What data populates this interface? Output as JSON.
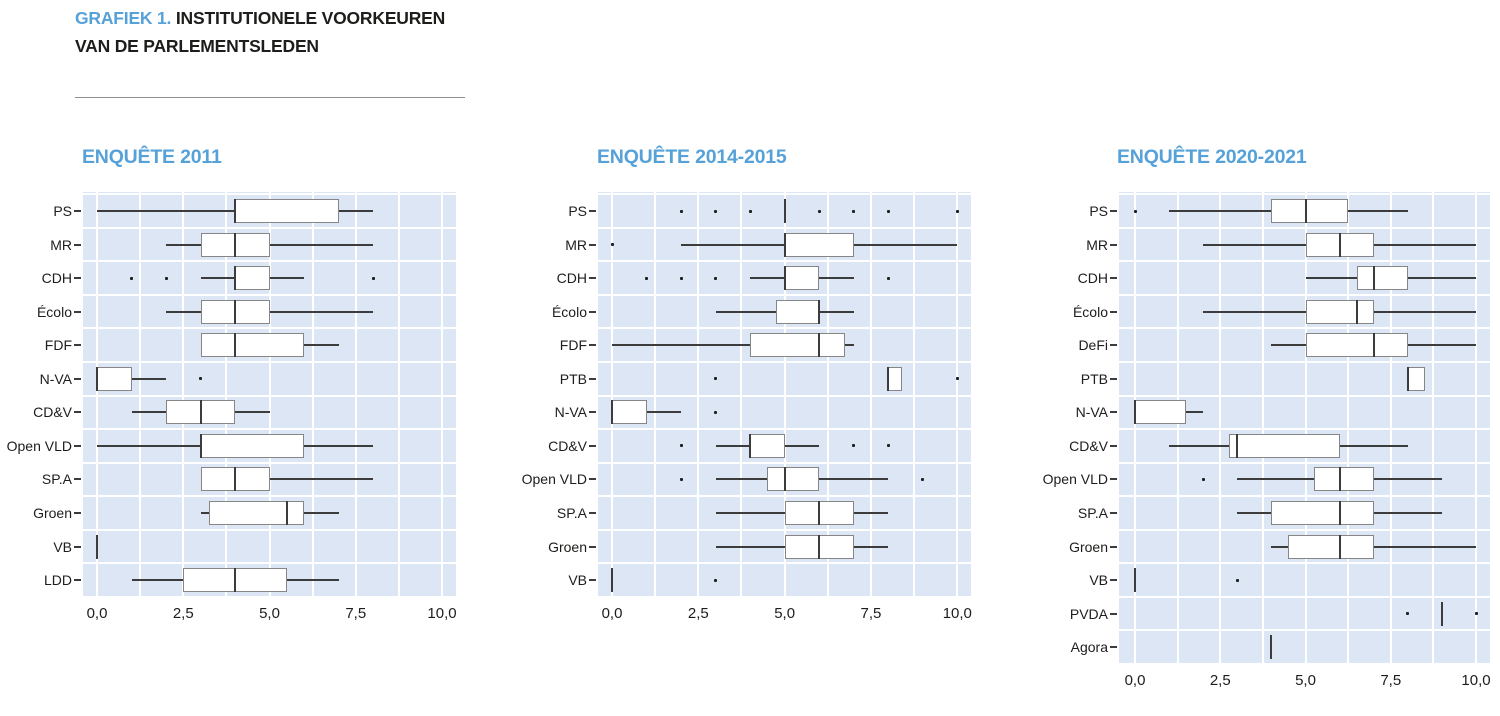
{
  "header": {
    "prefix": "GRAFIEK 1.",
    "line1": "INSTITUTIONELE VOORKEUREN",
    "line2": "VAN DE PARLEMENTSLEDEN"
  },
  "colors": {
    "accent_blue": "#56a1d8",
    "plot_background": "#dce6f4",
    "gridline": "#ffffff",
    "box_fill": "#ffffff",
    "box_border": "#868686",
    "whisker": "#3c3c3c",
    "text": "#1d1d1b"
  },
  "chart_data": [
    {
      "type": "boxplot",
      "orientation": "horizontal",
      "title": "ENQUÊTE 2011",
      "xlim": [
        0,
        10
      ],
      "xtick_values": [
        0,
        2.5,
        5,
        7.5,
        10
      ],
      "xtick_labels": [
        "0,0",
        "2,5",
        "5,0",
        "7,5",
        "10,0"
      ],
      "grid_step": 1.25,
      "rows": [
        {
          "label": "PS",
          "lo": 0,
          "q1": 4,
          "med": 4,
          "q3": 7,
          "hi": 8,
          "outliers": []
        },
        {
          "label": "MR",
          "lo": 2,
          "q1": 3,
          "med": 4,
          "q3": 5,
          "hi": 8,
          "outliers": []
        },
        {
          "label": "CDH",
          "lo": 3,
          "q1": 4,
          "med": 4,
          "q3": 5,
          "hi": 6,
          "outliers": [
            1,
            2,
            8
          ]
        },
        {
          "label": "Écolo",
          "lo": 2,
          "q1": 3,
          "med": 4,
          "q3": 5,
          "hi": 8,
          "outliers": []
        },
        {
          "label": "FDF",
          "lo": 3,
          "q1": 3,
          "med": 4,
          "q3": 6,
          "hi": 7,
          "outliers": []
        },
        {
          "label": "N-VA",
          "lo": 0,
          "q1": 0,
          "med": 0,
          "q3": 1,
          "hi": 2,
          "outliers": [
            3
          ]
        },
        {
          "label": "CD&V",
          "lo": 1,
          "q1": 2,
          "med": 3,
          "q3": 4,
          "hi": 5,
          "outliers": []
        },
        {
          "label": "Open VLD",
          "lo": 0,
          "q1": 3,
          "med": 3,
          "q3": 6,
          "hi": 8,
          "outliers": []
        },
        {
          "label": "SP.A",
          "lo": 3,
          "q1": 3,
          "med": 4,
          "q3": 5,
          "hi": 8,
          "outliers": []
        },
        {
          "label": "Groen",
          "lo": 3,
          "q1": 3.25,
          "med": 5.5,
          "q3": 6,
          "hi": 7,
          "outliers": []
        },
        {
          "label": "VB",
          "lo": 0,
          "q1": 0,
          "med": 0,
          "q3": 0,
          "hi": 0,
          "outliers": []
        },
        {
          "label": "LDD",
          "lo": 1,
          "q1": 2.5,
          "med": 4,
          "q3": 5.5,
          "hi": 7,
          "outliers": []
        }
      ]
    },
    {
      "type": "boxplot",
      "orientation": "horizontal",
      "title": "ENQUÊTE 2014-2015",
      "xlim": [
        0,
        10
      ],
      "xtick_values": [
        0,
        2.5,
        5,
        7.5,
        10
      ],
      "xtick_labels": [
        "0,0",
        "2,5",
        "5,0",
        "7,5",
        "10,0"
      ],
      "grid_step": 1.25,
      "rows": [
        {
          "label": "PS",
          "lo": 5,
          "q1": 5,
          "med": 5,
          "q3": 5,
          "hi": 5,
          "outliers": [
            2,
            3,
            4,
            6,
            7,
            8,
            10
          ]
        },
        {
          "label": "MR",
          "lo": 2,
          "q1": 5,
          "med": 5,
          "q3": 7,
          "hi": 10,
          "outliers": [
            0
          ]
        },
        {
          "label": "CDH",
          "lo": 4,
          "q1": 5,
          "med": 5,
          "q3": 6,
          "hi": 7,
          "outliers": [
            1,
            2,
            3,
            8
          ]
        },
        {
          "label": "Écolo",
          "lo": 3,
          "q1": 4.75,
          "med": 6,
          "q3": 6,
          "hi": 7,
          "outliers": []
        },
        {
          "label": "FDF",
          "lo": 0,
          "q1": 4,
          "med": 6,
          "q3": 6.75,
          "hi": 7,
          "outliers": []
        },
        {
          "label": "PTB",
          "lo": 8,
          "q1": 8,
          "med": 8,
          "q3": 8.4,
          "hi": 8.4,
          "outliers": [
            3,
            10
          ]
        },
        {
          "label": "N-VA",
          "lo": 0,
          "q1": 0,
          "med": 0,
          "q3": 1,
          "hi": 2,
          "outliers": [
            3
          ]
        },
        {
          "label": "CD&V",
          "lo": 3,
          "q1": 4,
          "med": 4,
          "q3": 5,
          "hi": 6,
          "outliers": [
            2,
            7,
            8
          ]
        },
        {
          "label": "Open VLD",
          "lo": 3,
          "q1": 4.5,
          "med": 5,
          "q3": 6,
          "hi": 8,
          "outliers": [
            2,
            9
          ]
        },
        {
          "label": "SP.A",
          "lo": 3,
          "q1": 5,
          "med": 6,
          "q3": 7,
          "hi": 8,
          "outliers": []
        },
        {
          "label": "Groen",
          "lo": 3,
          "q1": 5,
          "med": 6,
          "q3": 7,
          "hi": 8,
          "outliers": []
        },
        {
          "label": "VB",
          "lo": 0,
          "q1": 0,
          "med": 0,
          "q3": 0,
          "hi": 0,
          "outliers": [
            3
          ]
        }
      ]
    },
    {
      "type": "boxplot",
      "orientation": "horizontal",
      "title": "ENQUÊTE 2020-2021",
      "xlim": [
        0,
        10
      ],
      "xtick_values": [
        0,
        2.5,
        5,
        7.5,
        10
      ],
      "xtick_labels": [
        "0,0",
        "2,5",
        "5,0",
        "7,5",
        "10,0"
      ],
      "grid_step": 1.25,
      "rows": [
        {
          "label": "PS",
          "lo": 1,
          "q1": 4,
          "med": 5,
          "q3": 6.25,
          "hi": 8,
          "outliers": [
            0
          ]
        },
        {
          "label": "MR",
          "lo": 2,
          "q1": 5,
          "med": 6,
          "q3": 7,
          "hi": 10,
          "outliers": []
        },
        {
          "label": "CDH",
          "lo": 5,
          "q1": 6.5,
          "med": 7,
          "q3": 8,
          "hi": 10,
          "outliers": []
        },
        {
          "label": "Écolo",
          "lo": 2,
          "q1": 5,
          "med": 6.5,
          "q3": 7,
          "hi": 10,
          "outliers": []
        },
        {
          "label": "DeFi",
          "lo": 4,
          "q1": 5,
          "med": 7,
          "q3": 8,
          "hi": 10,
          "outliers": []
        },
        {
          "label": "PTB",
          "lo": 8,
          "q1": 8,
          "med": 8,
          "q3": 8.5,
          "hi": 8.5,
          "outliers": []
        },
        {
          "label": "N-VA",
          "lo": 0,
          "q1": 0,
          "med": 0,
          "q3": 1.5,
          "hi": 2,
          "outliers": []
        },
        {
          "label": "CD&V",
          "lo": 1,
          "q1": 2.75,
          "med": 3,
          "q3": 6,
          "hi": 8,
          "outliers": []
        },
        {
          "label": "Open VLD",
          "lo": 3,
          "q1": 5.25,
          "med": 6,
          "q3": 7,
          "hi": 9,
          "outliers": [
            2
          ]
        },
        {
          "label": "SP.A",
          "lo": 3,
          "q1": 4,
          "med": 6,
          "q3": 7,
          "hi": 9,
          "outliers": []
        },
        {
          "label": "Groen",
          "lo": 4,
          "q1": 4.5,
          "med": 6,
          "q3": 7,
          "hi": 10,
          "outliers": []
        },
        {
          "label": "VB",
          "lo": 0,
          "q1": 0,
          "med": 0,
          "q3": 0,
          "hi": 0,
          "outliers": [
            3
          ]
        },
        {
          "label": "PVDA",
          "lo": 9,
          "q1": 9,
          "med": 9,
          "q3": 9,
          "hi": 9,
          "outliers": [
            8,
            10
          ]
        },
        {
          "label": "Agora",
          "lo": 4,
          "q1": 4,
          "med": 4,
          "q3": 4,
          "hi": 4,
          "outliers": []
        }
      ]
    }
  ]
}
